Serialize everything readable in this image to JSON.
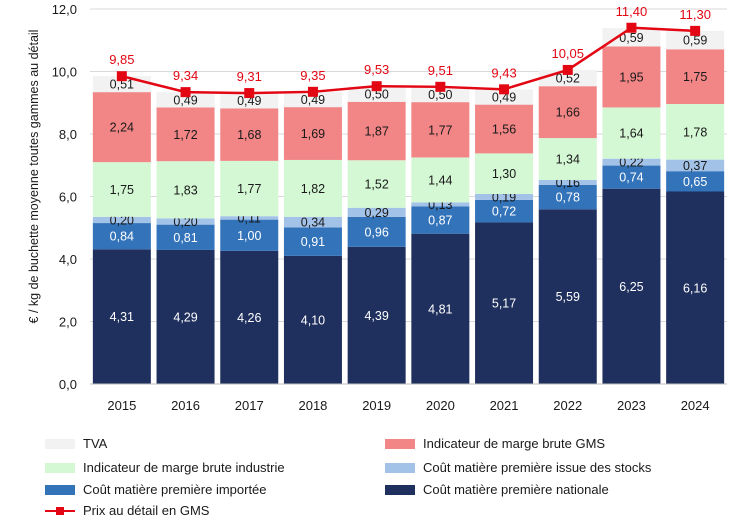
{
  "chart_data": {
    "type": "bar",
    "stacked": true,
    "ylabel": "€ / kg de buchette moyenne toutes gammes au détail",
    "ylim": [
      0,
      12
    ],
    "yticks": [
      "0,0",
      "2,0",
      "4,0",
      "6,0",
      "8,0",
      "10,0",
      "12,0"
    ],
    "categories": [
      "2015",
      "2016",
      "2017",
      "2018",
      "2019",
      "2020",
      "2021",
      "2022",
      "2023",
      "2024"
    ],
    "series": [
      {
        "name": "Coût matière première nationale",
        "color": "#1f2f5e",
        "text_color": "#ffffff",
        "values": [
          4.31,
          4.29,
          4.26,
          4.1,
          4.39,
          4.81,
          5.17,
          5.59,
          6.25,
          6.16
        ],
        "labels": [
          "4,31",
          "4,29",
          "4,26",
          "4,10",
          "4,39",
          "4,81",
          "5,17",
          "5,59",
          "6,25",
          "6,16"
        ]
      },
      {
        "name": "Coût matière première importée",
        "color": "#3273ba",
        "text_color": "#ffffff",
        "values": [
          0.84,
          0.81,
          1.0,
          0.91,
          0.96,
          0.87,
          0.72,
          0.78,
          0.74,
          0.65
        ],
        "labels": [
          "0,84",
          "0,81",
          "1,00",
          "0,91",
          "0,96",
          "0,87",
          "0,72",
          "0,78",
          "0,74",
          "0,65"
        ]
      },
      {
        "name": "Coût matière première issue des stocks",
        "color": "#a3c2e8",
        "text_color": "#1a1a1a",
        "values": [
          0.2,
          0.2,
          0.11,
          0.34,
          0.29,
          0.13,
          0.19,
          0.16,
          0.22,
          0.37
        ],
        "labels": [
          "0,20",
          "0,20",
          "0,11",
          "0,34",
          "0,29",
          "0,13",
          "0,19",
          "0,16",
          "0,22",
          "0,37"
        ]
      },
      {
        "name": "Indicateur de marge brute industrie",
        "color": "#d4f7d4",
        "text_color": "#1a1a1a",
        "values": [
          1.75,
          1.83,
          1.77,
          1.82,
          1.52,
          1.44,
          1.3,
          1.34,
          1.64,
          1.78
        ],
        "labels": [
          "1,75",
          "1,83",
          "1,77",
          "1,82",
          "1,52",
          "1,44",
          "1,30",
          "1,34",
          "1,64",
          "1,78"
        ]
      },
      {
        "name": "Indicateur de marge brute GMS",
        "color": "#f28585",
        "text_color": "#1a1a1a",
        "values": [
          2.24,
          1.72,
          1.68,
          1.69,
          1.87,
          1.77,
          1.56,
          1.66,
          1.95,
          1.75
        ],
        "labels": [
          "2,24",
          "1,72",
          "1,68",
          "1,69",
          "1,87",
          "1,77",
          "1,56",
          "1,66",
          "1,95",
          "1,75"
        ]
      },
      {
        "name": "TVA",
        "color": "#f2f2f2",
        "text_color": "#1a1a1a",
        "values": [
          0.51,
          0.49,
          0.49,
          0.49,
          0.5,
          0.5,
          0.49,
          0.52,
          0.59,
          0.59
        ],
        "labels": [
          "0,51",
          "0,49",
          "0,49",
          "0,49",
          "0,50",
          "0,50",
          "0,49",
          "0,52",
          "0,59",
          "0,59"
        ]
      }
    ],
    "line": {
      "name": "Prix au détail en GMS",
      "color": "#e30613",
      "values": [
        9.85,
        9.34,
        9.31,
        9.35,
        9.53,
        9.51,
        9.43,
        10.05,
        11.4,
        11.3
      ],
      "labels": [
        "9,85",
        "9,34",
        "9,31",
        "9,35",
        "9,53",
        "9,51",
        "9,43",
        "10,05",
        "11,40",
        "11,30"
      ]
    }
  },
  "legend": {
    "tva": "TVA",
    "marge_gms": "Indicateur de marge brute GMS",
    "marge_industrie": "Indicateur de marge brute industrie",
    "mp_stocks": "Coût matière première issue des stocks",
    "mp_importee": "Coût matière première importée",
    "mp_nationale": "Coût matière première nationale",
    "prix": "Prix au détail en GMS"
  },
  "colors": {
    "tva": "#f2f2f2",
    "marge_gms": "#f28585",
    "marge_industrie": "#d4f7d4",
    "mp_stocks": "#a3c2e8",
    "mp_importee": "#3273ba",
    "mp_nationale": "#1f2f5e"
  }
}
